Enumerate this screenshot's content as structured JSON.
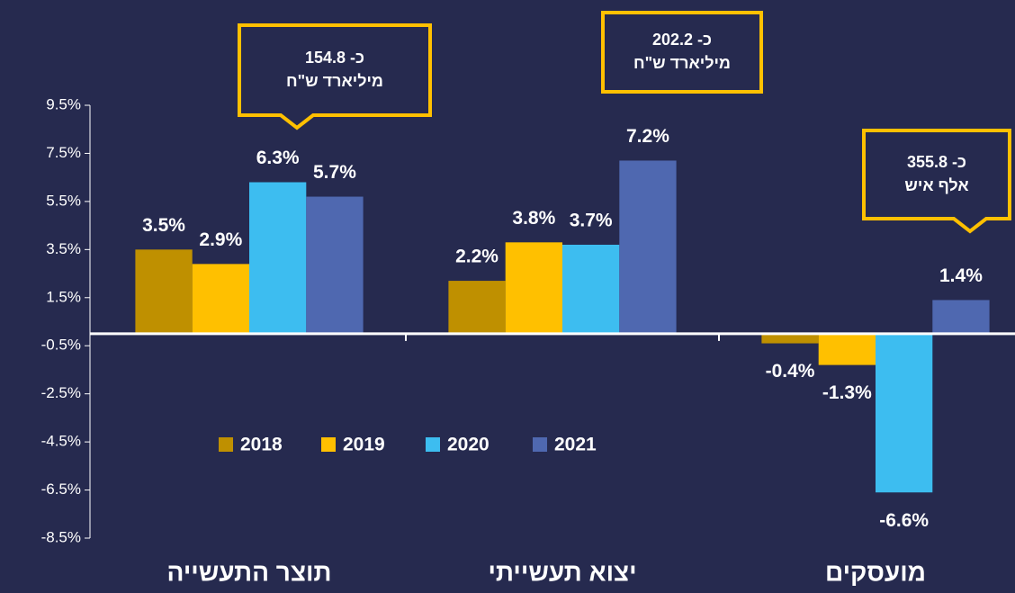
{
  "chart_data": {
    "type": "bar",
    "categories": [
      "תוצר התעשייה",
      "יצוא תעשייתי",
      "מועסקים"
    ],
    "series": [
      {
        "name": "2018",
        "color": "#bf9000",
        "values": [
          3.5,
          2.2,
          -0.4
        ],
        "value_labels": [
          "3.5%",
          "2.2%",
          "-0.4%"
        ]
      },
      {
        "name": "2019",
        "color": "#ffc000",
        "values": [
          2.9,
          3.8,
          -1.3
        ],
        "value_labels": [
          "2.9%",
          "3.8%",
          "-1.3%"
        ]
      },
      {
        "name": "2020",
        "color": "#3dbdf0",
        "values": [
          6.3,
          3.7,
          -6.6
        ],
        "value_labels": [
          "6.3%",
          "3.7%",
          "-6.6%"
        ]
      },
      {
        "name": "2021",
        "color": "#4f68b0",
        "values": [
          5.7,
          7.2,
          1.4
        ],
        "value_labels": [
          "5.7%",
          "7.2%",
          "1.4%"
        ]
      }
    ],
    "ylim": [
      -8.5,
      9.5
    ],
    "yticks": [
      {
        "value": 9.5,
        "label": "9.5%"
      },
      {
        "value": 7.5,
        "label": "7.5%"
      },
      {
        "value": 5.5,
        "label": "5.5%"
      },
      {
        "value": 3.5,
        "label": "3.5%"
      },
      {
        "value": 1.5,
        "label": "1.5%"
      },
      {
        "value": -0.5,
        "label": "-0.5%"
      },
      {
        "value": -2.5,
        "label": "-2.5%"
      },
      {
        "value": -4.5,
        "label": "-4.5%"
      },
      {
        "value": -6.5,
        "label": "-6.5%"
      },
      {
        "value": -8.5,
        "label": "-8.5%"
      }
    ],
    "legend": "center",
    "annotations": [
      {
        "lines": [
          "כ- 154.8",
          "מיליארד ש\"ח"
        ]
      },
      {
        "lines": [
          "כ- 202.2",
          "מיליארד ש\"ח"
        ]
      },
      {
        "lines": [
          "כ- 355.8",
          "אלף איש"
        ]
      }
    ]
  }
}
